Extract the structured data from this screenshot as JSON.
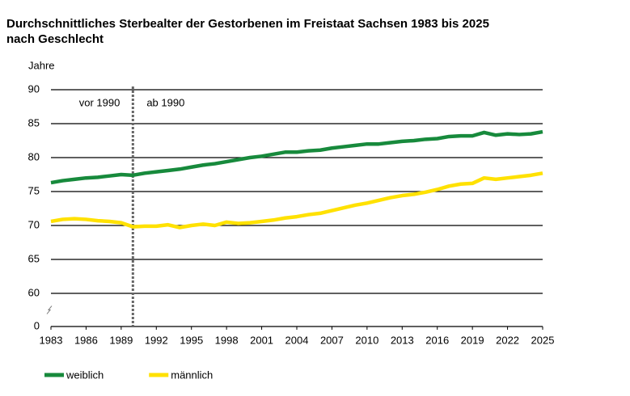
{
  "chart_data": {
    "type": "line",
    "title": "Durchschnittliches Sterbealter der Gestorbenen im Freistaat Sachsen 1983 bis 2025",
    "subtitle": "nach Geschlecht",
    "y_label": "Jahre",
    "x": [
      1983,
      1984,
      1985,
      1986,
      1987,
      1988,
      1989,
      1990,
      1991,
      1992,
      1993,
      1994,
      1995,
      1996,
      1997,
      1998,
      1999,
      2000,
      2001,
      2002,
      2003,
      2004,
      2005,
      2006,
      2007,
      2008,
      2009,
      2010,
      2011,
      2012,
      2013,
      2014,
      2015,
      2016,
      2017,
      2018,
      2019,
      2020,
      2021,
      2022,
      2023,
      2024,
      2025
    ],
    "series": [
      {
        "name": "weiblich",
        "color": "#178a3c",
        "values": [
          76.3,
          76.6,
          76.8,
          77.0,
          77.1,
          77.3,
          77.5,
          77.4,
          77.7,
          77.9,
          78.1,
          78.3,
          78.6,
          78.9,
          79.1,
          79.4,
          79.7,
          80.0,
          80.2,
          80.5,
          80.8,
          80.8,
          81.0,
          81.1,
          81.4,
          81.6,
          81.8,
          82.0,
          82.0,
          82.2,
          82.4,
          82.5,
          82.7,
          82.8,
          83.1,
          83.2,
          83.2,
          83.7,
          83.3,
          83.5,
          83.4,
          83.5,
          83.8
        ]
      },
      {
        "name": "männlich",
        "color": "#ffe100",
        "values": [
          70.6,
          70.9,
          71.0,
          70.9,
          70.7,
          70.6,
          70.4,
          69.8,
          69.9,
          69.9,
          70.1,
          69.7,
          70.0,
          70.2,
          70.0,
          70.5,
          70.3,
          70.4,
          70.6,
          70.8,
          71.1,
          71.3,
          71.6,
          71.8,
          72.2,
          72.6,
          73.0,
          73.3,
          73.7,
          74.1,
          74.4,
          74.6,
          74.9,
          75.3,
          75.8,
          76.1,
          76.2,
          77.0,
          76.8,
          77.0,
          77.2,
          77.4,
          77.7
        ]
      }
    ],
    "xlim": [
      1983,
      2025
    ],
    "xticks": [
      1983,
      1986,
      1989,
      1992,
      1995,
      1998,
      2001,
      2004,
      2007,
      2010,
      2013,
      2016,
      2019,
      2022,
      2025
    ],
    "ylim": [
      0,
      90
    ],
    "yticks": [
      0,
      60,
      65,
      70,
      75,
      80,
      85,
      90
    ],
    "axis_break": [
      0,
      60
    ],
    "grid": true,
    "reference_line": {
      "x": 1990,
      "left_label": "vor 1990",
      "right_label": "ab 1990"
    },
    "legend_position": "bottom"
  }
}
